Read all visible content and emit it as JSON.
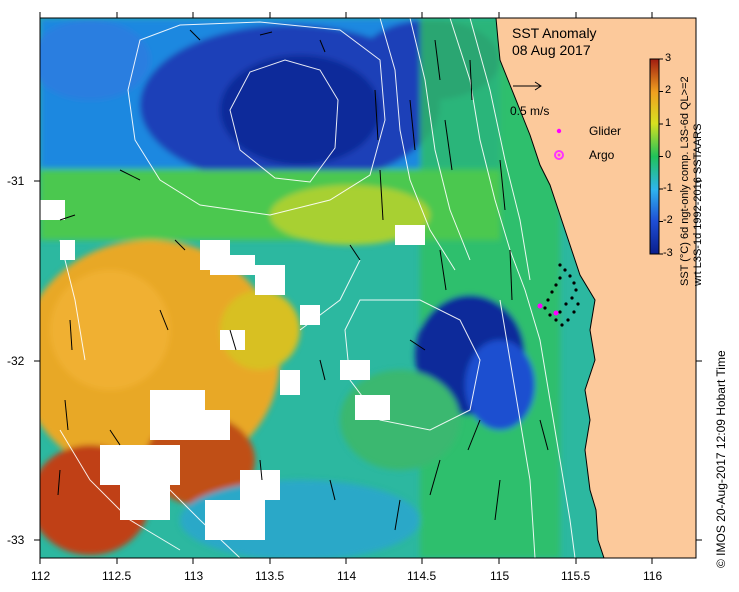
{
  "title": {
    "line1": "SST Anomaly",
    "line2": "08 Aug 2017"
  },
  "velocity_scale": {
    "label": "0.5 m/s"
  },
  "legend": {
    "glider_label": "Glider",
    "argo_label": "Argo",
    "glider_color": "#ff00ff",
    "argo_color": "#ff33ff"
  },
  "colorbar": {
    "min": -3,
    "max": 3,
    "tick_labels": [
      "3",
      "2",
      "1",
      "0",
      "-1",
      "-2",
      "-3"
    ],
    "caption_line1": "SST (°C) 6d ngt-only comp. L3S-6d QL>=2",
    "caption_line2": "wrt L3S-1d 1992-2016 SSTAARS"
  },
  "axes": {
    "x_ticks": [
      "112",
      "112.5",
      "113",
      "113.5",
      "114",
      "114.5",
      "115",
      "115.5",
      "116"
    ],
    "y_ticks": [
      "-31",
      "-32",
      "-33"
    ]
  },
  "credit": "© IMOS 20-Aug-2017 12:09 Hobart Time",
  "colors": {
    "land": "#fcc99b",
    "no_data": "#ffffff",
    "contour": "#ffffff"
  }
}
